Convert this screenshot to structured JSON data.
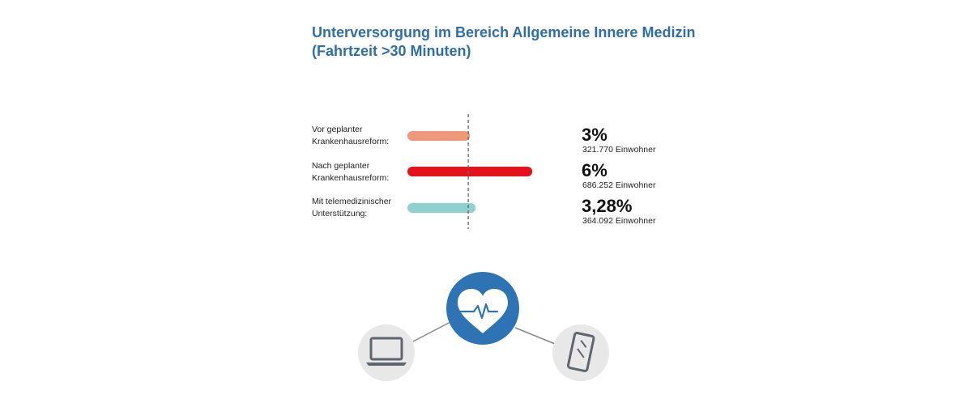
{
  "title": {
    "line1": "Unterversorgung im Bereich Allgemeine Innere Medizin",
    "line2": "(Fahrtzeit >30 Minuten)"
  },
  "chart_data": {
    "type": "bar",
    "orientation": "horizontal",
    "categories": [
      [
        "Vor geplanter",
        "Krankenhausreform:"
      ],
      [
        "Nach geplanter",
        "Krankenhausreform:"
      ],
      [
        "Mit telemedizinischer",
        "Unterstützung:"
      ]
    ],
    "values": [
      3,
      6,
      3.28
    ],
    "value_labels": [
      "3%",
      "6%",
      "3,28%"
    ],
    "population_labels": [
      "321.770 Einwohner",
      "686.252 Einwohner",
      "364.092 Einwohner"
    ],
    "colors": [
      "#f0997a",
      "#e3121b",
      "#8fd0d0"
    ],
    "reference_line_value": 3,
    "xlim": [
      0,
      6
    ],
    "grid": false
  },
  "icons": {
    "center": "heart-pulse-icon",
    "left": "laptop-icon",
    "right": "smartphone-icon",
    "center_color": "#2e74b5",
    "side_circle_color": "#e8e8e8",
    "connector_color": "#888888"
  }
}
